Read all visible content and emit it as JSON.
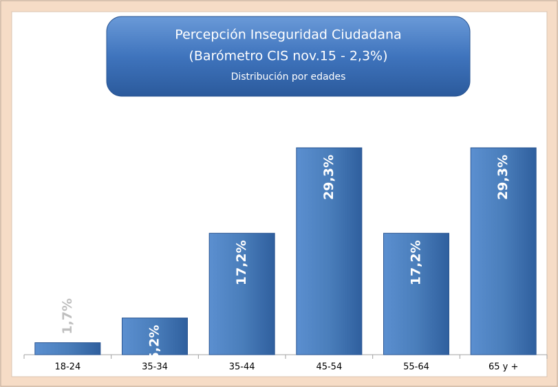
{
  "chart_data": {
    "type": "bar",
    "title": "Percepción Inseguridad Ciudadana",
    "subtitle": "(Barómetro CIS nov.15 - 2,3%)",
    "caption": "Distribución por edades",
    "categories": [
      "18-24",
      "35-34",
      "35-44",
      "45-54",
      "55-64",
      "65 y +"
    ],
    "values": [
      1.7,
      5.2,
      17.2,
      29.3,
      17.2,
      29.3
    ],
    "value_labels": [
      "1,7%",
      "5,2%",
      "17,2%",
      "29,3%",
      "17,2%",
      "29,3%"
    ],
    "color": "#4a7ebb"
  }
}
